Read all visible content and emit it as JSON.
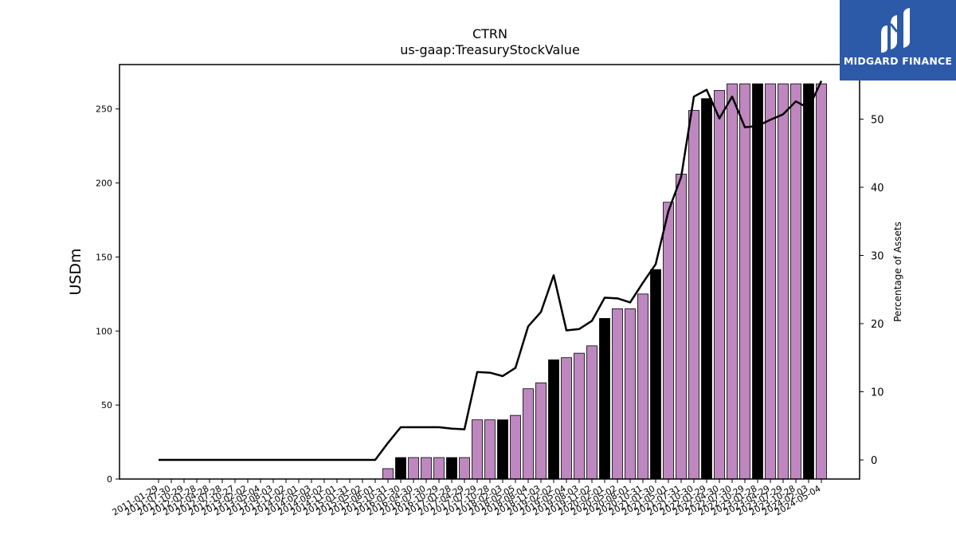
{
  "brand": {
    "name": "MIDGARD FINANCE",
    "bg_color": "#2d5aa8",
    "text_color": "#ffffff"
  },
  "chart_data": {
    "type": "bar",
    "title": "CTRN",
    "subtitle": "us-gaap:TreasuryStockValue",
    "ylabel": "USDm",
    "y2label": "Percentage of Assets",
    "ylim": [
      0,
      280
    ],
    "y2lim": [
      -2.8,
      58
    ],
    "yticks": [
      0,
      50,
      100,
      150,
      200,
      250
    ],
    "y2ticks": [
      0,
      10,
      20,
      30,
      40,
      50
    ],
    "grid": false,
    "colors": {
      "bar_default": "#bf87c0",
      "bar_highlight": "#000000",
      "line": "#000000"
    },
    "categories": [
      "2011-01-29",
      "2011-07-30",
      "2011-10-29",
      "2012-01-28",
      "2012-04-28",
      "2012-07-28",
      "2012-10-27",
      "2013-02-02",
      "2013-05-04",
      "2013-08-03",
      "2013-11-02",
      "2014-02-01",
      "2014-05-03",
      "2014-08-02",
      "2014-11-01",
      "2015-01-31",
      "2015-05-02",
      "2015-08-01",
      "2015-10-31",
      "2016-01-30",
      "2016-04-30",
      "2016-07-30",
      "2016-10-29",
      "2017-01-28",
      "2017-04-29",
      "2017-07-29",
      "2017-10-28",
      "2018-02-03",
      "2018-05-05",
      "2018-08-04",
      "2018-11-03",
      "2019-02-02",
      "2019-05-04",
      "2019-08-03",
      "2019-11-02",
      "2020-02-01",
      "2020-05-02",
      "2020-08-01",
      "2020-10-31",
      "2021-01-30",
      "2021-05-01",
      "2021-07-31",
      "2021-10-30",
      "2022-01-29",
      "2022-04-30",
      "2022-07-30",
      "2022-10-29",
      "2023-01-28",
      "2023-04-29",
      "2023-07-29",
      "2023-10-28",
      "2024-02-03",
      "2024-05-04"
    ],
    "series": [
      {
        "type": "bar",
        "axis": "left",
        "values": [
          0,
          0,
          0,
          0,
          0,
          0,
          0,
          0,
          0,
          0,
          0,
          0,
          0,
          0,
          0,
          0,
          0,
          0,
          7,
          14.5,
          14.5,
          14.5,
          14.5,
          14.5,
          14.5,
          40,
          40,
          40,
          43,
          61,
          65,
          80.5,
          82,
          85,
          90,
          108.5,
          115,
          115,
          125,
          141.5,
          187,
          206,
          249,
          257,
          262.5,
          267,
          267,
          267,
          267,
          267,
          267,
          267,
          267
        ],
        "highlight": [
          false,
          false,
          false,
          false,
          false,
          false,
          false,
          false,
          false,
          false,
          false,
          false,
          false,
          false,
          false,
          false,
          false,
          false,
          false,
          true,
          false,
          false,
          false,
          true,
          false,
          false,
          false,
          true,
          false,
          false,
          false,
          true,
          false,
          false,
          false,
          true,
          false,
          false,
          false,
          true,
          false,
          false,
          false,
          true,
          false,
          false,
          false,
          true,
          false,
          false,
          false,
          true,
          false
        ]
      },
      {
        "type": "line",
        "axis": "right",
        "values": [
          0,
          0,
          0,
          0,
          0,
          0,
          0,
          0,
          0,
          0,
          0,
          0,
          0,
          0,
          0,
          0,
          0,
          0,
          2.5,
          4.8,
          4.8,
          4.8,
          4.8,
          4.6,
          4.5,
          12.9,
          12.8,
          12.3,
          13.5,
          19.6,
          21.7,
          27.1,
          19,
          19.2,
          20.4,
          23.8,
          23.7,
          23.1,
          26,
          28.7,
          36.5,
          41.5,
          53.3,
          54.3,
          50.1,
          53.3,
          48.8,
          49,
          49.9,
          50.7,
          52.6,
          51.6,
          55.6
        ]
      }
    ]
  }
}
